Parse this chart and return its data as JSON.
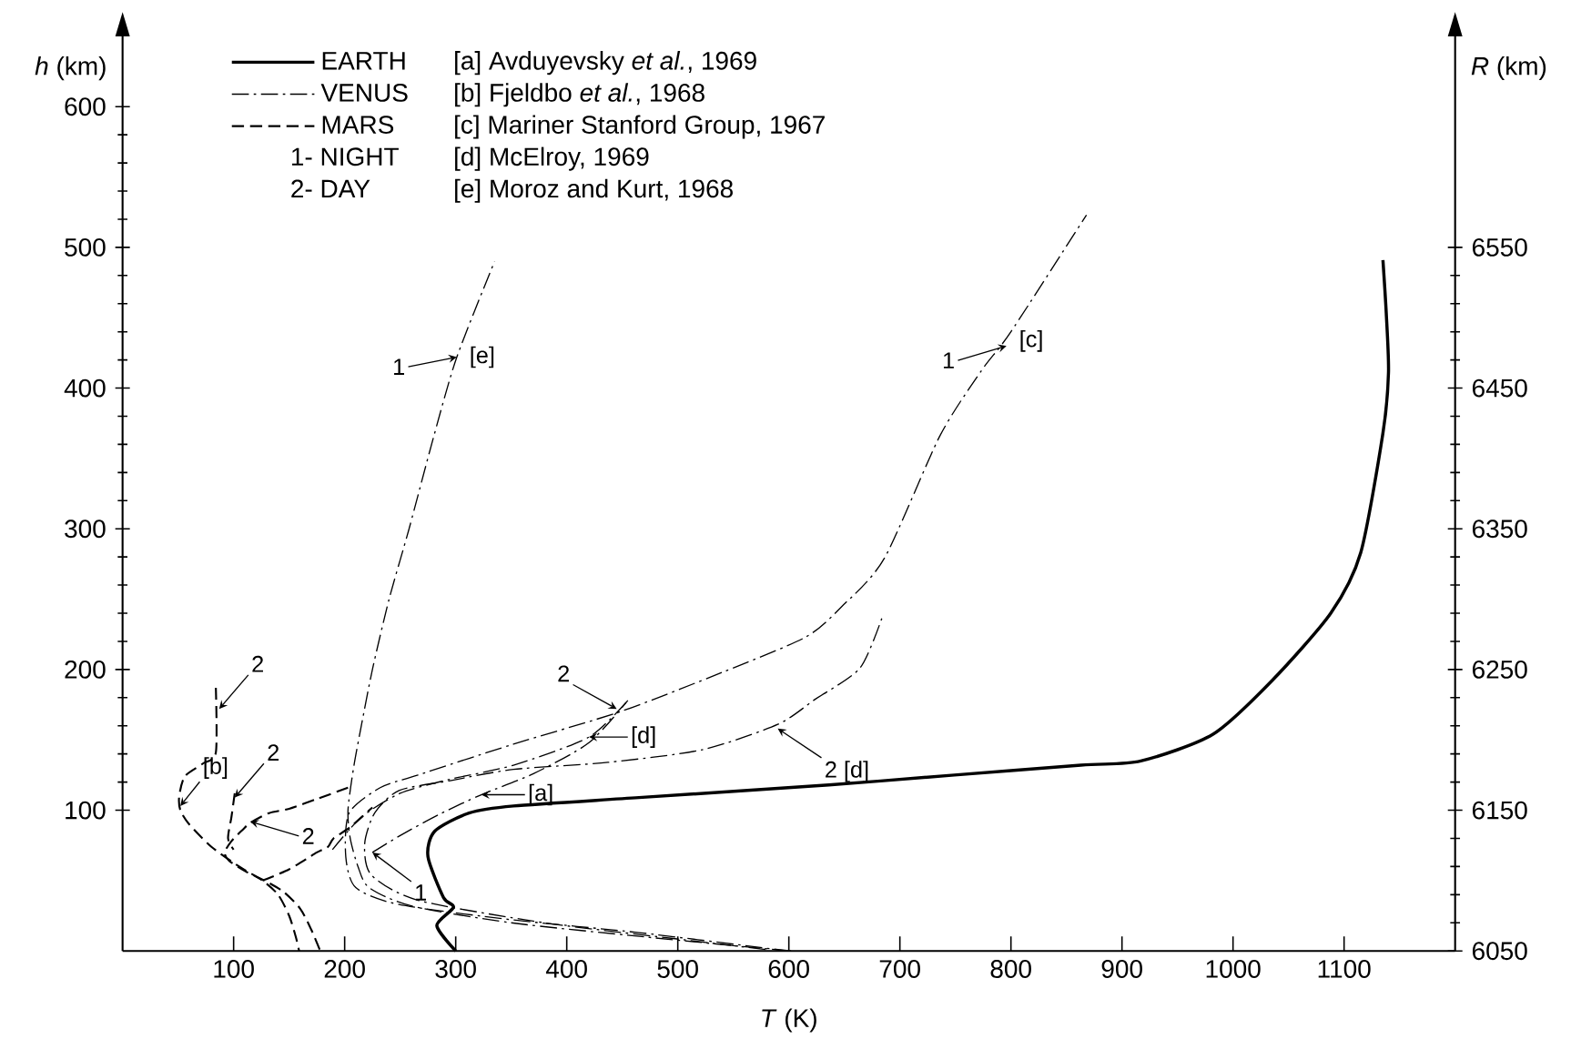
{
  "chart_data": {
    "type": "line",
    "xlabel": "*T* (K)",
    "ylabel": "*h* (km)",
    "y2label": "*R* (km)",
    "xlim": [
      0,
      1200
    ],
    "xticks": [
      100,
      200,
      300,
      400,
      500,
      600,
      700,
      800,
      900,
      1000,
      1100
    ],
    "ylim": [
      0,
      650
    ],
    "yticks": [
      100,
      200,
      300,
      400,
      500,
      600
    ],
    "y2lim": [
      6050,
      6700
    ],
    "y2ticks": [
      6050,
      6150,
      6250,
      6350,
      6450,
      6550
    ],
    "legend": "top left",
    "series": [
      {
        "name": "EARTH",
        "color": "#000000",
        "line_style": "solid",
        "x": [
          300,
          283,
          298,
          289,
          275,
          281,
          312,
          352,
          465,
          636,
          749,
          863,
          917,
          982,
          1035,
          1088,
          1115,
          1135,
          1140,
          1138,
          1135
        ],
        "values": [
          0,
          18,
          31,
          38,
          67,
          85,
          98,
          103,
          109,
          118,
          125,
          132,
          135,
          154,
          192,
          240,
          283,
          368,
          411,
          453,
          491
        ]
      },
      {
        "name": "VENUS",
        "color": "#000000",
        "line_style": "dashdot",
        "x": [
          602,
          579,
          465,
          352,
          249,
          210,
          201,
          204,
          232,
          266,
          352,
          448,
          540,
          615,
          648,
          686,
          736,
          774,
          800,
          868
        ],
        "values": [
          0,
          2,
          13,
          22,
          33,
          45,
          67,
          98,
          116,
          125,
          147,
          170,
          198,
          223,
          245,
          279,
          366,
          413,
          440,
          523
        ]
      },
      {
        "color": "#000000",
        "line_style": "dashdot",
        "x": [
          600,
          470,
          350,
          260,
          222,
          212,
          205,
          203,
          208,
          215,
          225,
          240,
          258,
          280,
          301,
          335
        ],
        "values": [
          0,
          10,
          20,
          32,
          45,
          60,
          80,
          100,
          130,
          160,
          200,
          250,
          300,
          365,
          422,
          490
        ]
      },
      {
        "color": "#000000",
        "line_style": "dashdot",
        "x": [
          579,
          494,
          380,
          266,
          224,
          218,
          227,
          249,
          295,
          352,
          437,
          522,
          590,
          624,
          664,
          684
        ],
        "values": [
          1,
          9,
          20,
          36,
          54,
          76,
          98,
          114,
          121,
          129,
          134,
          143,
          161,
          179,
          201,
          237
        ]
      },
      {
        "color": "#000000",
        "line_style": "dashdot",
        "x": [
          189,
          215,
          250,
          295,
          352,
          420,
          455
        ],
        "values": [
          72,
          95,
          112,
          122,
          132,
          152,
          178
        ]
      },
      {
        "color": "#000000",
        "line_style": "dashdot",
        "x": [
          225,
          250,
          285,
          323,
          370,
          420,
          455
        ],
        "values": [
          70,
          82,
          97,
          111,
          126,
          148,
          178
        ]
      },
      {
        "name": "MARS",
        "color": "#000000",
        "line_style": "dashed",
        "x": [
          84,
          84,
          72,
          56,
          51,
          52,
          60,
          80,
          105,
          126,
          140,
          150,
          156,
          159
        ],
        "values": [
          187,
          141,
          133,
          124,
          110,
          100,
          90,
          74,
          60,
          50,
          40,
          25,
          10,
          0
        ]
      },
      {
        "color": "#000000",
        "line_style": "dashed",
        "x": [
          203,
          175,
          150,
          132,
          115,
          108,
          98,
          92,
          96,
          112,
          128,
          145,
          160,
          170,
          178
        ],
        "values": [
          116,
          108,
          101,
          98,
          91,
          86,
          78,
          70,
          64,
          56,
          50,
          42,
          30,
          15,
          0
        ]
      },
      {
        "color": "#000000",
        "line_style": "dashed",
        "x": [
          126,
          150,
          175,
          185,
          190,
          205,
          225
        ],
        "values": [
          50,
          58,
          70,
          74,
          80,
          88,
          102
        ]
      },
      {
        "color": "#000000",
        "line_style": "dashed",
        "x": [
          101,
          98,
          95,
          100
        ],
        "values": [
          112,
          95,
          80,
          72
        ]
      }
    ],
    "annotations": [
      "[a] Avduyevsky *et al.*, 1969",
      "[b] Fjeldbo *et al.*, 1968",
      "[c] Mariner Stanford Group, 1967",
      "[d] McElroy, 1969",
      "[e] Moroz and Kurt, 1968",
      "1- NIGHT",
      "2- DAY",
      {
        "text": "1",
        "x": 301,
        "y": 422
      },
      {
        "text": "[e]",
        "x": 301,
        "y": 422
      },
      {
        "text": "1",
        "x": 796,
        "y": 430
      },
      {
        "text": "[c]",
        "x": 796,
        "y": 430
      },
      {
        "text": "2",
        "x": 445,
        "y": 172
      },
      {
        "text": "[d]",
        "x": 420,
        "y": 152
      },
      {
        "text": "2 [d]",
        "x": 590,
        "y": 158
      },
      {
        "text": "[a]",
        "x": 323,
        "y": 111
      },
      {
        "text": "1",
        "x": 225,
        "y": 70
      },
      {
        "text": "[b]",
        "x": 52,
        "y": 103
      },
      {
        "text": "2",
        "x": 101,
        "y": 109
      },
      {
        "text": "2",
        "x": 87,
        "y": 172
      },
      {
        "text": "2",
        "x": 115,
        "y": 92
      }
    ]
  }
}
